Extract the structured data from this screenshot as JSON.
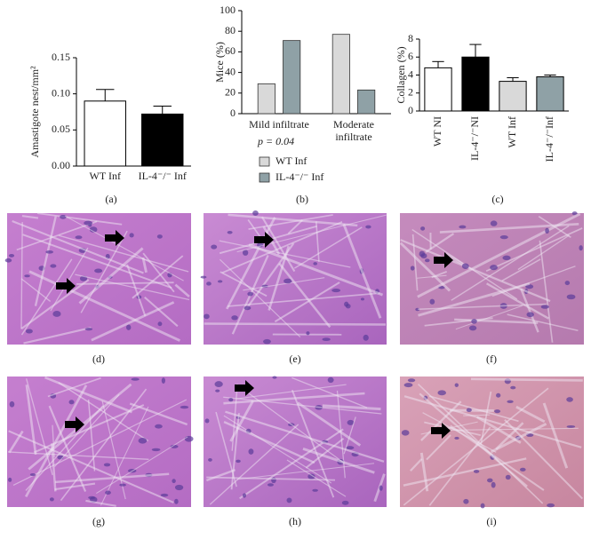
{
  "chart_data": [
    {
      "type": "bar",
      "y_label": "Amastigote nest/mm²",
      "categories": [
        "WT Inf",
        "IL-4⁻/⁻ Inf"
      ],
      "values": [
        0.09,
        0.072
      ],
      "errors": [
        0.016,
        0.011
      ],
      "colors": [
        "#ffffff",
        "#000000"
      ],
      "ylim": [
        0,
        0.15
      ],
      "yticks": [
        {
          "value": 0,
          "label": "0.00"
        },
        {
          "value": 0.05,
          "label": "0.05"
        },
        {
          "value": 0.1,
          "label": "0.10"
        },
        {
          "value": 0.15,
          "label": "0.15"
        }
      ]
    },
    {
      "type": "bar",
      "y_label": "Mice (%)",
      "categories": [
        "Mild infiltrate",
        "Moderate infiltrate"
      ],
      "series": [
        {
          "name": "WT Inf",
          "color": "#d9d9d9",
          "values": [
            29,
            77
          ]
        },
        {
          "name": "IL-4⁻/⁻ Inf",
          "color": "#8fa1a6",
          "values": [
            71,
            23
          ]
        }
      ],
      "ylim": [
        0,
        100
      ],
      "yticks": [
        0,
        20,
        40,
        60,
        80,
        100
      ],
      "annotation": "p = 0.04"
    },
    {
      "type": "bar",
      "y_label": "Collagen (%)",
      "categories": [
        "WT NI",
        "IL-4⁻/⁻NI",
        "WT Inf",
        "IL-4⁻/⁻Inf"
      ],
      "values": [
        4.8,
        6.0,
        3.3,
        3.8
      ],
      "errors": [
        0.7,
        1.4,
        0.4,
        0.2
      ],
      "colors": [
        "#ffffff",
        "#000000",
        "#d9d9d9",
        "#8fa1a6"
      ],
      "ylim": [
        0,
        8
      ],
      "yticks": [
        0,
        2,
        4,
        6,
        8
      ]
    }
  ],
  "panel_labels": [
    "(a)",
    "(b)",
    "(c)",
    "(d)",
    "(e)",
    "(f)",
    "(g)",
    "(h)",
    "(i)"
  ]
}
